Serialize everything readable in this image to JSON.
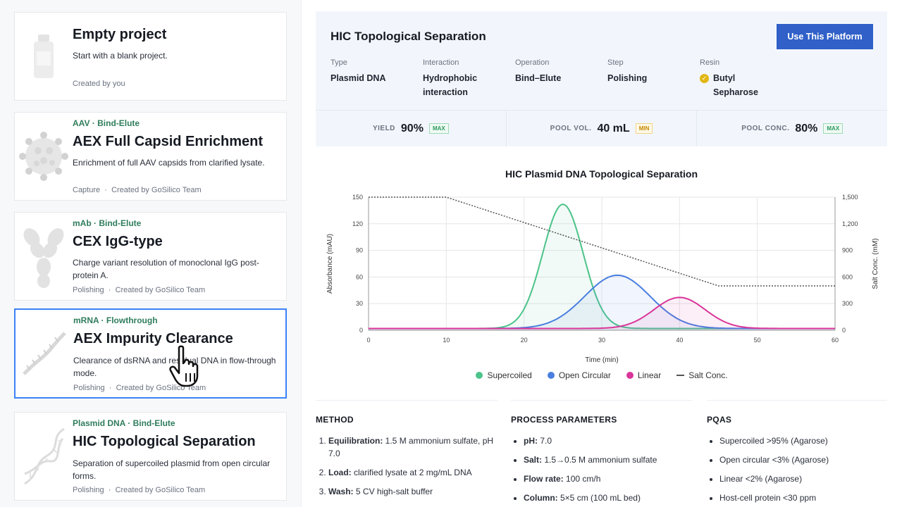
{
  "projects": [
    {
      "category": "",
      "title": "Empty project",
      "description": "Start with a blank project.",
      "step": "",
      "author": "Created by you",
      "thumb": "bottle-icon"
    },
    {
      "category": "AAV · Bind-Elute",
      "title": "AEX Full Capsid Enrichment",
      "description": "Enrichment of full AAV capsids from clarified lysate.",
      "step": "Capture",
      "author": "Created by GoSilico Team",
      "thumb": "virus-icon"
    },
    {
      "category": "mAb · Bind-Elute",
      "title": "CEX IgG-type",
      "description": "Charge variant resolution of monoclonal IgG post-protein A.",
      "step": "Polishing",
      "author": "Created by GoSilico Team",
      "thumb": "antibody-icon"
    },
    {
      "category": "mRNA · Flowthrough",
      "title": "AEX Impurity Clearance",
      "description": "Clearance of dsRNA and residual DNA in flow-through mode.",
      "step": "Polishing",
      "author": "Created by GoSilico Team",
      "thumb": "mrna-icon"
    },
    {
      "category": "Plasmid DNA · Bind-Elute",
      "title": "HIC Topological Separation",
      "description": "Separation of supercoiled plasmid from open circular forms.",
      "step": "Polishing",
      "author": "Created by GoSilico Team",
      "thumb": "dna-helix-icon"
    }
  ],
  "meta_separator": "·",
  "detail": {
    "title": "HIC Topological Separation",
    "use_button": "Use This Platform",
    "attributes": [
      {
        "key": "Type",
        "value": "Plasmid DNA"
      },
      {
        "key": "Interaction",
        "value": "Hydrophobic interaction"
      },
      {
        "key": "Operation",
        "value": "Bind–Elute"
      },
      {
        "key": "Step",
        "value": "Polishing"
      },
      {
        "key": "Resin",
        "value": "Butyl Sepharose"
      }
    ],
    "stats": [
      {
        "label": "YIELD",
        "value": "90%",
        "tag": "MAX"
      },
      {
        "label": "POOL VOL.",
        "value": "40 mL",
        "tag": "MIN"
      },
      {
        "label": "POOL CONC.",
        "value": "80%",
        "tag": "MAX"
      }
    ]
  },
  "chart_data": {
    "type": "line",
    "title": "HIC Plasmid DNA Topological Separation",
    "xlabel": "Time (min)",
    "ylabel": "Absorbance (mAU)",
    "y2label": "Salt Conc. (mM)",
    "xlim": [
      0,
      60
    ],
    "ylim": [
      0,
      150
    ],
    "y2lim": [
      0,
      1500
    ],
    "x_ticks": [
      0,
      10,
      20,
      30,
      40,
      50,
      60
    ],
    "y_ticks": [
      0,
      30,
      60,
      90,
      120,
      150
    ],
    "y2_ticks": [
      "0",
      "300",
      "600",
      "900",
      "1,200",
      "1,500"
    ],
    "grid": true,
    "legend_position": "bottom",
    "series": [
      {
        "name": "Supercoiled",
        "color": "#4cc38a",
        "kind": "gaussian",
        "baseline": 2,
        "peak_x": 25,
        "peak_y": 142,
        "width": 2.6
      },
      {
        "name": "Open Circular",
        "color": "#4a7fe0",
        "kind": "gaussian",
        "baseline": 2,
        "peak_x": 32,
        "peak_y": 62,
        "width": 4.2
      },
      {
        "name": "Linear",
        "color": "#d9369a",
        "kind": "gaussian",
        "baseline": 2,
        "peak_x": 40,
        "peak_y": 37,
        "width": 3.3
      },
      {
        "name": "Salt Conc.",
        "color": "#555555",
        "kind": "salt",
        "axis": "right",
        "x": [
          0,
          10,
          45,
          60
        ],
        "y": [
          1500,
          1500,
          500,
          500
        ]
      }
    ]
  },
  "sections": {
    "method": {
      "title": "METHOD",
      "items": [
        {
          "label": "Equilibration:",
          "text": "1.5 M ammonium sulfate, pH 7.0"
        },
        {
          "label": "Load:",
          "text": "clarified lysate at 2 mg/mL DNA"
        },
        {
          "label": "Wash:",
          "text": "5 CV high-salt buffer"
        }
      ]
    },
    "params": {
      "title": "PROCESS PARAMETERS",
      "items": [
        {
          "label": "pH:",
          "text": "7.0"
        },
        {
          "label": "Salt:",
          "text": "1.5→0.5 M ammonium sulfate"
        },
        {
          "label": "Flow rate:",
          "text": "100 cm/h"
        },
        {
          "label": "Column:",
          "text": "5×5 cm (100 mL bed)"
        }
      ]
    },
    "pqas": {
      "title": "PQAS",
      "items": [
        "Supercoiled >95% (Agarose)",
        "Open circular <3% (Agarose)",
        "Linear <2% (Agarose)",
        "Host-cell protein <30 ppm"
      ]
    }
  }
}
